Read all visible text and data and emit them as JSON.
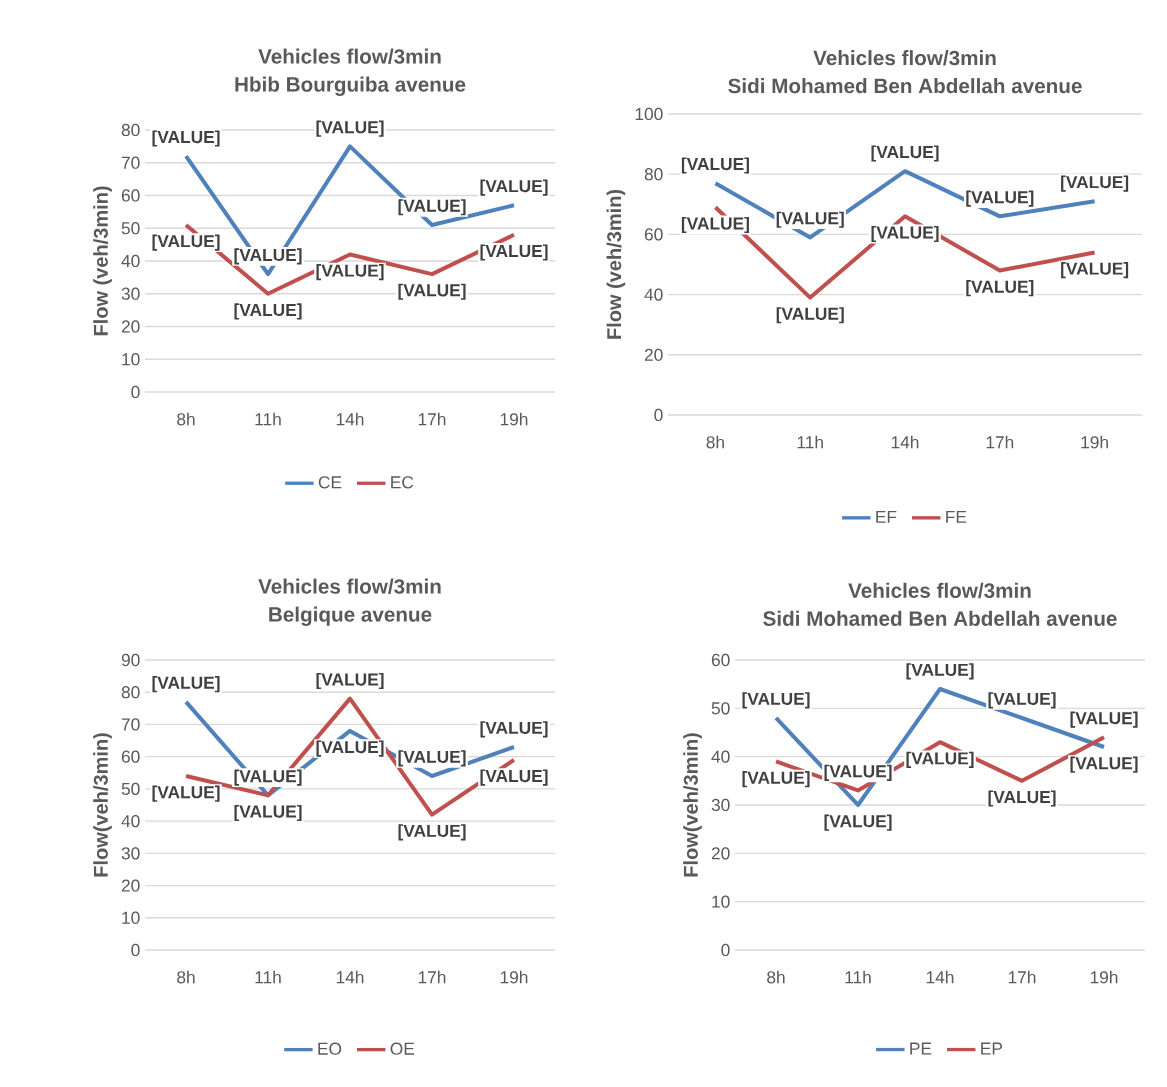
{
  "chart_data": [
    {
      "type": "line",
      "title": "Vehicles flow/3min",
      "subtitle": "Hbib Bourguiba avenue",
      "ylabel": "Flow (veh/3min)",
      "categories": [
        "8h",
        "11h",
        "14h",
        "17h",
        "19h"
      ],
      "ylim": [
        0,
        80
      ],
      "yticks": [
        0,
        10,
        20,
        30,
        40,
        50,
        60,
        70,
        80
      ],
      "grid": "y",
      "legend": "bottom",
      "series": [
        {
          "name": "CE",
          "color": "#4f81bd",
          "values": [
            72,
            36,
            75,
            51,
            57
          ],
          "value_labels": [
            "[VALUE]",
            "[VALUE]",
            "[VALUE]",
            "[VALUE]",
            "[VALUE]"
          ]
        },
        {
          "name": "EC",
          "color": "#c0504d",
          "values": [
            51,
            30,
            42,
            36,
            48
          ],
          "value_labels": [
            "[VALUE]",
            "[VALUE]",
            "[VALUE]",
            "[VALUE]",
            "[VALUE]"
          ]
        }
      ]
    },
    {
      "type": "line",
      "title": "Vehicles flow/3min",
      "subtitle": "Sidi Mohamed Ben Abdellah avenue",
      "ylabel": "Flow (veh/3min)",
      "categories": [
        "8h",
        "11h",
        "14h",
        "17h",
        "19h"
      ],
      "ylim": [
        0,
        100
      ],
      "yticks": [
        0,
        20,
        40,
        60,
        80,
        100
      ],
      "grid": "y",
      "legend": "bottom",
      "series": [
        {
          "name": "EF",
          "color": "#4f81bd",
          "values": [
            77,
            59,
            81,
            66,
            71
          ],
          "value_labels": [
            "[VALUE]",
            "[VALUE]",
            "[VALUE]",
            "[VALUE]",
            "[VALUE]"
          ]
        },
        {
          "name": "FE",
          "color": "#c0504d",
          "values": [
            69,
            39,
            66,
            48,
            54
          ],
          "value_labels": [
            "[VALUE]",
            "[VALUE]",
            "[VALUE]",
            "[VALUE]",
            "[VALUE]"
          ]
        }
      ]
    },
    {
      "type": "line",
      "title": "Vehicles flow/3min",
      "subtitle": "Belgique avenue",
      "ylabel": "Flow(veh/3min)",
      "categories": [
        "8h",
        "11h",
        "14h",
        "17h",
        "19h"
      ],
      "ylim": [
        0,
        90
      ],
      "yticks": [
        0,
        10,
        20,
        30,
        40,
        50,
        60,
        70,
        80,
        90
      ],
      "grid": "y",
      "legend": "bottom",
      "series": [
        {
          "name": "EO",
          "color": "#4f81bd",
          "values": [
            77,
            48,
            68,
            54,
            63
          ],
          "value_labels": [
            "[VALUE]",
            "[VALUE]",
            "[VALUE]",
            "[VALUE]",
            "[VALUE]"
          ]
        },
        {
          "name": "OE",
          "color": "#c0504d",
          "values": [
            54,
            48,
            78,
            42,
            59
          ],
          "value_labels": [
            "[VALUE]",
            "[VALUE]",
            "[VALUE]",
            "[VALUE]",
            "[VALUE]"
          ]
        }
      ]
    },
    {
      "type": "line",
      "title": "Vehicles flow/3min",
      "subtitle": "Sidi Mohamed Ben Abdellah avenue",
      "ylabel": "Flow(veh/3min)",
      "categories": [
        "8h",
        "11h",
        "14h",
        "17h",
        "19h"
      ],
      "ylim": [
        0,
        60
      ],
      "yticks": [
        0,
        10,
        20,
        30,
        40,
        50,
        60
      ],
      "grid": "y",
      "legend": "bottom",
      "series": [
        {
          "name": "PE",
          "color": "#4f81bd",
          "values": [
            48,
            30,
            54,
            48,
            42
          ],
          "value_labels": [
            "[VALUE]",
            "[VALUE]",
            "[VALUE]",
            "[VALUE]",
            "[VALUE]"
          ]
        },
        {
          "name": "EP",
          "color": "#c0504d",
          "values": [
            39,
            33,
            43,
            35,
            44
          ],
          "value_labels": [
            "[VALUE]",
            "[VALUE]",
            "[VALUE]",
            "[VALUE]",
            "[VALUE]"
          ]
        }
      ]
    }
  ]
}
